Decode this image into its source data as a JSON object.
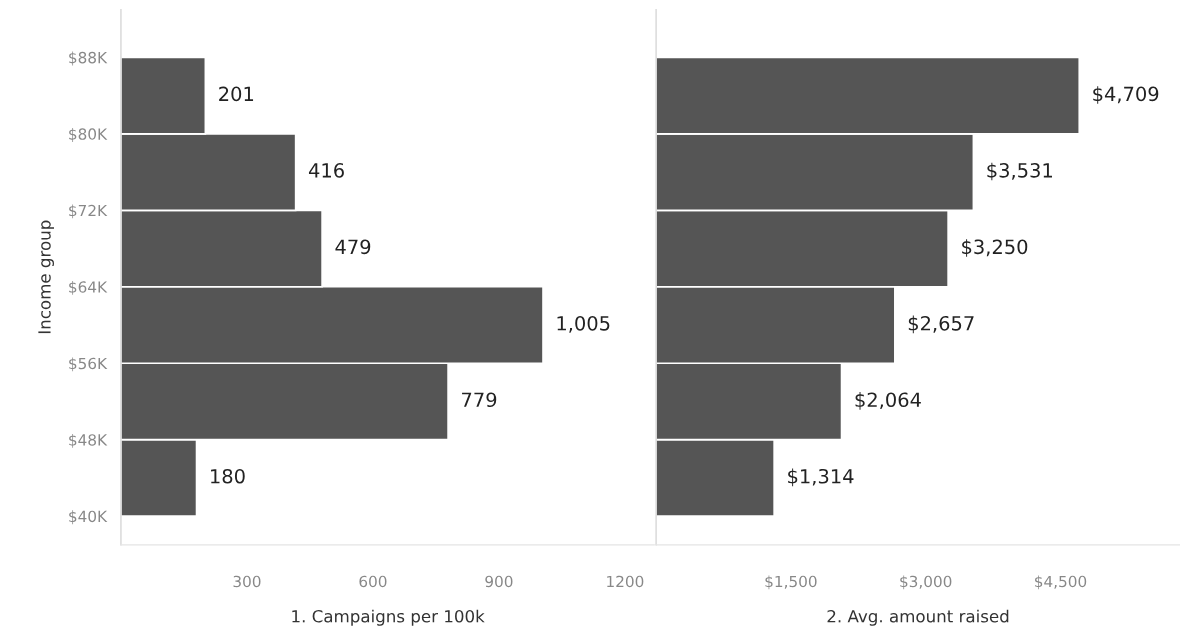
{
  "chart_data": [
    {
      "type": "histogram",
      "orientation": "horizontal",
      "ylabel": "Income group",
      "xlabel": "1. Campaigns per 100k",
      "bins": [
        40000,
        48000,
        56000,
        64000,
        72000,
        80000,
        88000
      ],
      "values": [
        180,
        779,
        1005,
        479,
        416,
        201
      ],
      "value_labels": [
        "180",
        "779",
        "1,005",
        "479",
        "416",
        "201"
      ],
      "color": "#555555",
      "xlim": [
        0,
        1270
      ],
      "xticks": [
        300,
        600,
        900,
        1200
      ],
      "ylim": [
        37000,
        93000
      ],
      "yticks": [
        {
          "value": 40000,
          "label": "$40K"
        },
        {
          "value": 48000,
          "label": "$48K"
        },
        {
          "value": 56000,
          "label": "$56K"
        },
        {
          "value": 64000,
          "label": "$64K"
        },
        {
          "value": 72000,
          "label": "$72K"
        },
        {
          "value": 80000,
          "label": "$80K"
        },
        {
          "value": 88000,
          "label": "$88K"
        }
      ],
      "grid": false
    },
    {
      "type": "histogram",
      "orientation": "horizontal",
      "xlabel": "2. Avg. amount raised",
      "bins": [
        40000,
        48000,
        56000,
        64000,
        72000,
        80000,
        88000
      ],
      "values": [
        1314,
        2064,
        2657,
        3250,
        3531,
        4709
      ],
      "value_labels": [
        "$1,314",
        "$2,064",
        "$2,657",
        "$3,250",
        "$3,531",
        "$4,709"
      ],
      "color": "#555555",
      "xlim": [
        0,
        5830
      ],
      "xticks": [
        {
          "value": 1500,
          "label": "$1,500"
        },
        {
          "value": 3000,
          "label": "$3,000"
        },
        {
          "value": 4500,
          "label": "$4,500"
        }
      ],
      "ylim": [
        37000,
        93000
      ],
      "tick_labels": "x",
      "grid": false
    }
  ]
}
